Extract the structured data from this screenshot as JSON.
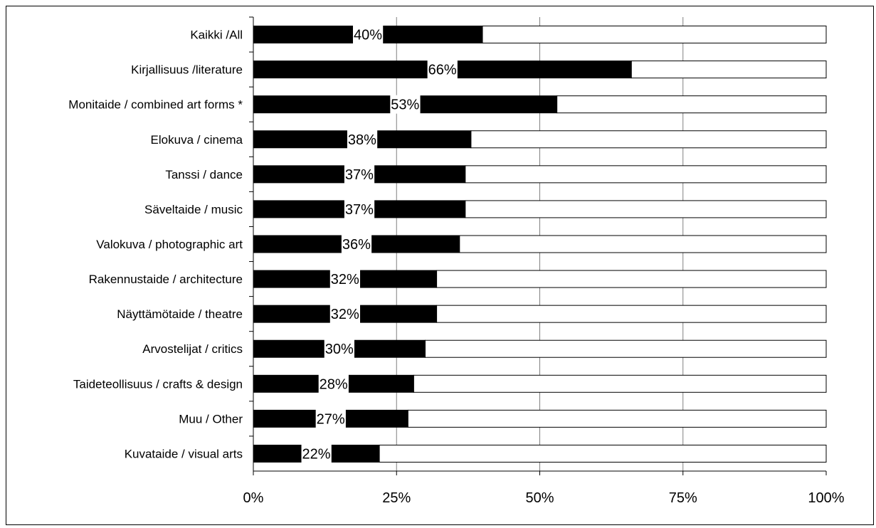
{
  "chart_data": {
    "type": "bar",
    "orientation": "horizontal",
    "stacked": "100%",
    "categories": [
      "Kaikki /All",
      "Kirjallisuus /literature",
      "Monitaide / combined art forms *",
      "Elokuva / cinema",
      "Tanssi / dance",
      "Säveltaide / music",
      "Valokuva / photographic art",
      "Rakennustaide / architecture",
      "Näyttämötaide / theatre",
      "Arvostelijat / critics",
      "Taideteollisuus / crafts & design",
      "Muu / Other",
      "Kuvataide / visual arts"
    ],
    "series": [
      {
        "values": [
          40,
          66,
          53,
          38,
          37,
          37,
          36,
          32,
          32,
          30,
          28,
          27,
          22
        ],
        "color": "#000000"
      },
      {
        "values": [
          60,
          34,
          47,
          62,
          63,
          63,
          64,
          68,
          68,
          70,
          72,
          73,
          78
        ],
        "color": "#ffffff"
      }
    ],
    "data_labels": [
      "40%",
      "66%",
      "53%",
      "38%",
      "37%",
      "37%",
      "36%",
      "32%",
      "32%",
      "30%",
      "28%",
      "27%",
      "22%"
    ],
    "x_ticks": [
      "0%",
      "25%",
      "50%",
      "75%",
      "100%"
    ],
    "xlim": [
      0,
      100
    ],
    "grid": true,
    "legend": "none"
  }
}
